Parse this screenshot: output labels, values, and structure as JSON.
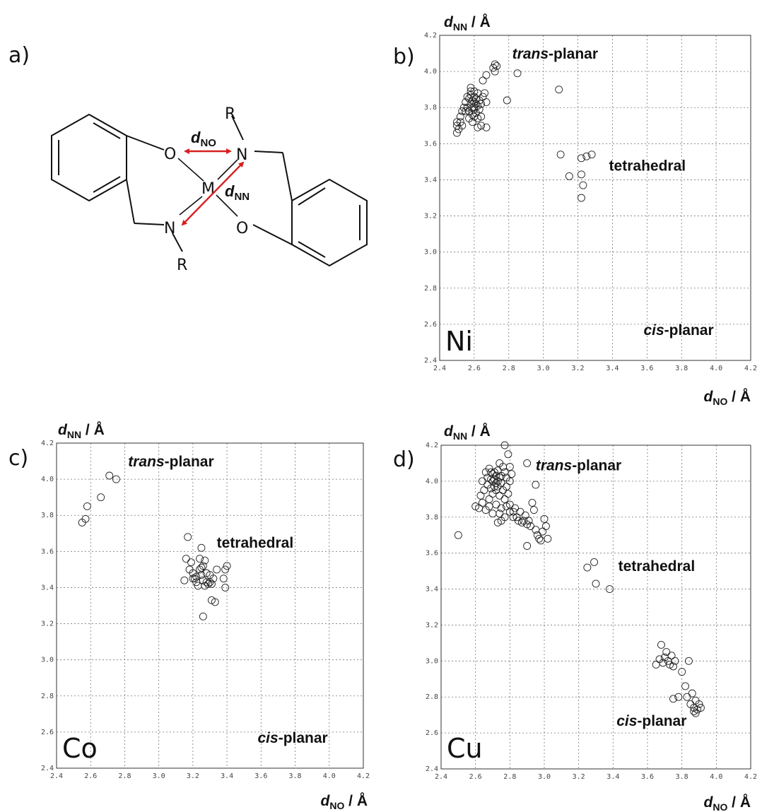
{
  "figure": {
    "panel_a": {
      "label": "a)",
      "atoms": {
        "o1": "O",
        "o2": "O",
        "n1": "N",
        "n2": "N",
        "m": "M",
        "r1": "R",
        "r2": "R"
      },
      "d_no": {
        "main": "d",
        "sub": "NO"
      },
      "d_nn": {
        "main": "d",
        "sub": "NN"
      },
      "arrow_color": "#d62020"
    }
  },
  "chart_data": [
    {
      "panel": "b)",
      "type": "scatter",
      "metal": "Ni",
      "xlabel": {
        "main": "d",
        "sub": "NO",
        "unit": " / Å"
      },
      "ylabel": {
        "main": "d",
        "sub": "NN",
        "unit": " / Å"
      },
      "xlim": [
        2.4,
        4.2
      ],
      "ylim": [
        2.4,
        4.2
      ],
      "xticks": [
        "2.4",
        "2.6",
        "2.8",
        "3.0",
        "3.2",
        "3.4",
        "3.6",
        "3.8",
        "4.0",
        "4.2"
      ],
      "yticks": [
        "2.4",
        "2.6",
        "2.8",
        "3.0",
        "3.2",
        "3.4",
        "3.6",
        "3.8",
        "4.0",
        "4.2"
      ],
      "grid": true,
      "regions": [
        {
          "italic": "trans",
          "rest": "-planar",
          "x": 2.82,
          "y": 4.07
        },
        {
          "italic": "",
          "rest": "tetrahedral",
          "x": 3.38,
          "y": 3.45
        },
        {
          "italic": "cis",
          "rest": "-planar",
          "x": 3.58,
          "y": 2.54
        }
      ],
      "points": [
        [
          2.5,
          3.7
        ],
        [
          2.51,
          3.68
        ],
        [
          2.5,
          3.66
        ],
        [
          2.52,
          3.72
        ],
        [
          2.53,
          3.7
        ],
        [
          2.5,
          3.72
        ],
        [
          2.55,
          3.78
        ],
        [
          2.56,
          3.8
        ],
        [
          2.57,
          3.85
        ],
        [
          2.58,
          3.82
        ],
        [
          2.59,
          3.8
        ],
        [
          2.6,
          3.83
        ],
        [
          2.6,
          3.79
        ],
        [
          2.61,
          3.85
        ],
        [
          2.62,
          3.81
        ],
        [
          2.57,
          3.78
        ],
        [
          2.58,
          3.87
        ],
        [
          2.59,
          3.76
        ],
        [
          2.6,
          3.75
        ],
        [
          2.62,
          3.88
        ],
        [
          2.63,
          3.84
        ],
        [
          2.55,
          3.83
        ],
        [
          2.56,
          3.86
        ],
        [
          2.54,
          3.8
        ],
        [
          2.61,
          3.77
        ],
        [
          2.63,
          3.79
        ],
        [
          2.64,
          3.82
        ],
        [
          2.58,
          3.89
        ],
        [
          2.6,
          3.89
        ],
        [
          2.65,
          3.86
        ],
        [
          2.57,
          3.74
        ],
        [
          2.59,
          3.72
        ],
        [
          2.62,
          3.74
        ],
        [
          2.64,
          3.7
        ],
        [
          2.62,
          3.69
        ],
        [
          2.66,
          3.88
        ],
        [
          2.67,
          3.83
        ],
        [
          2.65,
          3.95
        ],
        [
          2.67,
          3.98
        ],
        [
          2.64,
          3.75
        ],
        [
          2.67,
          3.69
        ],
        [
          2.52,
          3.75
        ],
        [
          2.53,
          3.78
        ],
        [
          2.58,
          3.91
        ],
        [
          2.6,
          3.8
        ],
        [
          2.59,
          3.84
        ],
        [
          2.61,
          3.82
        ],
        [
          2.6,
          3.86
        ],
        [
          2.71,
          4.02
        ],
        [
          2.72,
          4.04
        ],
        [
          2.72,
          4.0
        ],
        [
          2.73,
          4.03
        ],
        [
          2.85,
          3.99
        ],
        [
          2.79,
          3.84
        ],
        [
          3.09,
          3.9
        ],
        [
          3.1,
          3.54
        ],
        [
          3.15,
          3.42
        ],
        [
          3.22,
          3.52
        ],
        [
          3.25,
          3.53
        ],
        [
          3.28,
          3.54
        ],
        [
          3.22,
          3.43
        ],
        [
          3.23,
          3.37
        ],
        [
          3.22,
          3.3
        ]
      ]
    },
    {
      "panel": "c)",
      "type": "scatter",
      "metal": "Co",
      "xlabel": {
        "main": "d",
        "sub": "NO",
        "unit": " / Å"
      },
      "ylabel": {
        "main": "d",
        "sub": "NN",
        "unit": " / Å"
      },
      "xlim": [
        2.4,
        4.2
      ],
      "ylim": [
        2.4,
        4.2
      ],
      "xticks": [
        "2.4",
        "2.6",
        "2.8",
        "3.0",
        "3.2",
        "3.4",
        "3.6",
        "3.8",
        "4.0",
        "4.2"
      ],
      "yticks": [
        "2.4",
        "2.6",
        "2.8",
        "3.0",
        "3.2",
        "3.4",
        "3.6",
        "3.8",
        "4.0",
        "4.2"
      ],
      "grid": true,
      "regions": [
        {
          "italic": "trans",
          "rest": "-planar",
          "x": 2.82,
          "y": 4.07
        },
        {
          "italic": "",
          "rest": "tetrahedral",
          "x": 3.34,
          "y": 3.62
        },
        {
          "italic": "cis",
          "rest": "-planar",
          "x": 3.58,
          "y": 2.54
        }
      ],
      "points": [
        [
          2.55,
          3.76
        ],
        [
          2.57,
          3.78
        ],
        [
          2.58,
          3.85
        ],
        [
          2.66,
          3.9
        ],
        [
          2.71,
          4.02
        ],
        [
          2.75,
          4.0
        ],
        [
          3.15,
          3.44
        ],
        [
          3.17,
          3.68
        ],
        [
          3.16,
          3.56
        ],
        [
          3.18,
          3.5
        ],
        [
          3.19,
          3.54
        ],
        [
          3.2,
          3.48
        ],
        [
          3.21,
          3.45
        ],
        [
          3.22,
          3.43
        ],
        [
          3.23,
          3.41
        ],
        [
          3.24,
          3.5
        ],
        [
          3.24,
          3.56
        ],
        [
          3.25,
          3.47
        ],
        [
          3.25,
          3.51
        ],
        [
          3.26,
          3.52
        ],
        [
          3.26,
          3.44
        ],
        [
          3.27,
          3.41
        ],
        [
          3.27,
          3.55
        ],
        [
          3.28,
          3.43
        ],
        [
          3.28,
          3.48
        ],
        [
          3.29,
          3.42
        ],
        [
          3.3,
          3.43
        ],
        [
          3.3,
          3.47
        ],
        [
          3.31,
          3.42
        ],
        [
          3.32,
          3.45
        ],
        [
          3.34,
          3.5
        ],
        [
          3.31,
          3.33
        ],
        [
          3.33,
          3.32
        ],
        [
          3.25,
          3.62
        ],
        [
          3.26,
          3.24
        ],
        [
          3.38,
          3.45
        ],
        [
          3.39,
          3.4
        ],
        [
          3.39,
          3.5
        ],
        [
          3.4,
          3.52
        ],
        [
          3.2,
          3.45
        ],
        [
          3.22,
          3.46
        ]
      ]
    },
    {
      "panel": "d)",
      "type": "scatter",
      "metal": "Cu",
      "xlabel": {
        "main": "d",
        "sub": "NO",
        "unit": " / Å"
      },
      "ylabel": {
        "main": "d",
        "sub": "NN",
        "unit": " / Å"
      },
      "xlim": [
        2.4,
        4.2
      ],
      "ylim": [
        2.4,
        4.2
      ],
      "xticks": [
        "2.4",
        "2.6",
        "2.8",
        "3.0",
        "3.2",
        "3.4",
        "3.6",
        "3.8",
        "4.0",
        "4.2"
      ],
      "yticks": [
        "2.4",
        "2.6",
        "2.8",
        "3.0",
        "3.2",
        "3.4",
        "3.6",
        "3.8",
        "4.0",
        "4.2"
      ],
      "grid": true,
      "regions": [
        {
          "italic": "trans",
          "rest": "-planar",
          "x": 2.95,
          "y": 4.06
        },
        {
          "italic": "",
          "rest": "tetrahedral",
          "x": 3.43,
          "y": 3.5
        },
        {
          "italic": "cis",
          "rest": "-planar",
          "x": 3.42,
          "y": 2.64
        }
      ],
      "points": [
        [
          2.5,
          3.7
        ],
        [
          2.63,
          3.92
        ],
        [
          2.64,
          4.0
        ],
        [
          2.65,
          3.95
        ],
        [
          2.66,
          4.05
        ],
        [
          2.67,
          3.98
        ],
        [
          2.67,
          4.02
        ],
        [
          2.68,
          3.9
        ],
        [
          2.68,
          4.07
        ],
        [
          2.69,
          3.96
        ],
        [
          2.69,
          4.01
        ],
        [
          2.7,
          3.93
        ],
        [
          2.7,
          4.0
        ],
        [
          2.7,
          4.04
        ],
        [
          2.71,
          3.97
        ],
        [
          2.71,
          4.01
        ],
        [
          2.71,
          4.05
        ],
        [
          2.72,
          3.99
        ],
        [
          2.72,
          4.03
        ],
        [
          2.72,
          3.95
        ],
        [
          2.73,
          4.0
        ],
        [
          2.73,
          3.97
        ],
        [
          2.73,
          4.06
        ],
        [
          2.74,
          4.02
        ],
        [
          2.74,
          3.92
        ],
        [
          2.75,
          3.99
        ],
        [
          2.75,
          4.03
        ],
        [
          2.76,
          3.95
        ],
        [
          2.76,
          4.08
        ],
        [
          2.77,
          3.9
        ],
        [
          2.77,
          4.05
        ],
        [
          2.78,
          3.97
        ],
        [
          2.78,
          4.02
        ],
        [
          2.79,
          3.93
        ],
        [
          2.8,
          4.0
        ],
        [
          2.8,
          3.87
        ],
        [
          2.81,
          4.04
        ],
        [
          2.82,
          3.83
        ],
        [
          2.6,
          3.86
        ],
        [
          2.62,
          3.85
        ],
        [
          2.64,
          3.88
        ],
        [
          2.66,
          3.84
        ],
        [
          2.68,
          3.86
        ],
        [
          2.7,
          3.82
        ],
        [
          2.72,
          3.87
        ],
        [
          2.74,
          3.82
        ],
        [
          2.75,
          3.85
        ],
        [
          2.77,
          3.8
        ],
        [
          2.78,
          3.86
        ],
        [
          2.8,
          3.83
        ],
        [
          2.82,
          3.8
        ],
        [
          2.83,
          3.85
        ],
        [
          2.84,
          3.8
        ],
        [
          2.85,
          3.78
        ],
        [
          2.86,
          3.83
        ],
        [
          2.87,
          3.77
        ],
        [
          2.88,
          3.78
        ],
        [
          2.89,
          3.81
        ],
        [
          2.9,
          3.76
        ],
        [
          2.91,
          3.78
        ],
        [
          2.92,
          3.75
        ],
        [
          2.93,
          3.88
        ],
        [
          2.94,
          3.84
        ],
        [
          2.95,
          3.73
        ],
        [
          2.96,
          3.7
        ],
        [
          2.97,
          3.68
        ],
        [
          2.98,
          3.67
        ],
        [
          2.99,
          3.72
        ],
        [
          3.0,
          3.79
        ],
        [
          3.01,
          3.75
        ],
        [
          3.02,
          3.68
        ],
        [
          2.73,
          3.77
        ],
        [
          2.75,
          3.78
        ],
        [
          2.9,
          3.64
        ],
        [
          2.95,
          3.98
        ],
        [
          2.8,
          4.08
        ],
        [
          2.77,
          4.2
        ],
        [
          2.79,
          4.15
        ],
        [
          2.9,
          4.1
        ],
        [
          2.69,
          4.05
        ],
        [
          2.74,
          4.1
        ],
        [
          3.25,
          3.52
        ],
        [
          3.29,
          3.55
        ],
        [
          3.3,
          3.43
        ],
        [
          3.38,
          3.4
        ],
        [
          3.65,
          2.98
        ],
        [
          3.67,
          3.01
        ],
        [
          3.68,
          3.09
        ],
        [
          3.69,
          2.99
        ],
        [
          3.7,
          3.02
        ],
        [
          3.71,
          3.05
        ],
        [
          3.72,
          3.0
        ],
        [
          3.73,
          2.98
        ],
        [
          3.74,
          3.03
        ],
        [
          3.75,
          2.97
        ],
        [
          3.76,
          3.0
        ],
        [
          3.75,
          2.79
        ],
        [
          3.78,
          2.8
        ],
        [
          3.8,
          2.94
        ],
        [
          3.82,
          2.86
        ],
        [
          3.84,
          3.0
        ],
        [
          3.83,
          2.8
        ],
        [
          3.85,
          2.76
        ],
        [
          3.86,
          2.82
        ],
        [
          3.87,
          2.74
        ],
        [
          3.88,
          2.71
        ],
        [
          3.88,
          2.78
        ],
        [
          3.89,
          2.73
        ],
        [
          3.9,
          2.76
        ],
        [
          3.91,
          2.74
        ],
        [
          3.87,
          2.72
        ]
      ]
    }
  ]
}
